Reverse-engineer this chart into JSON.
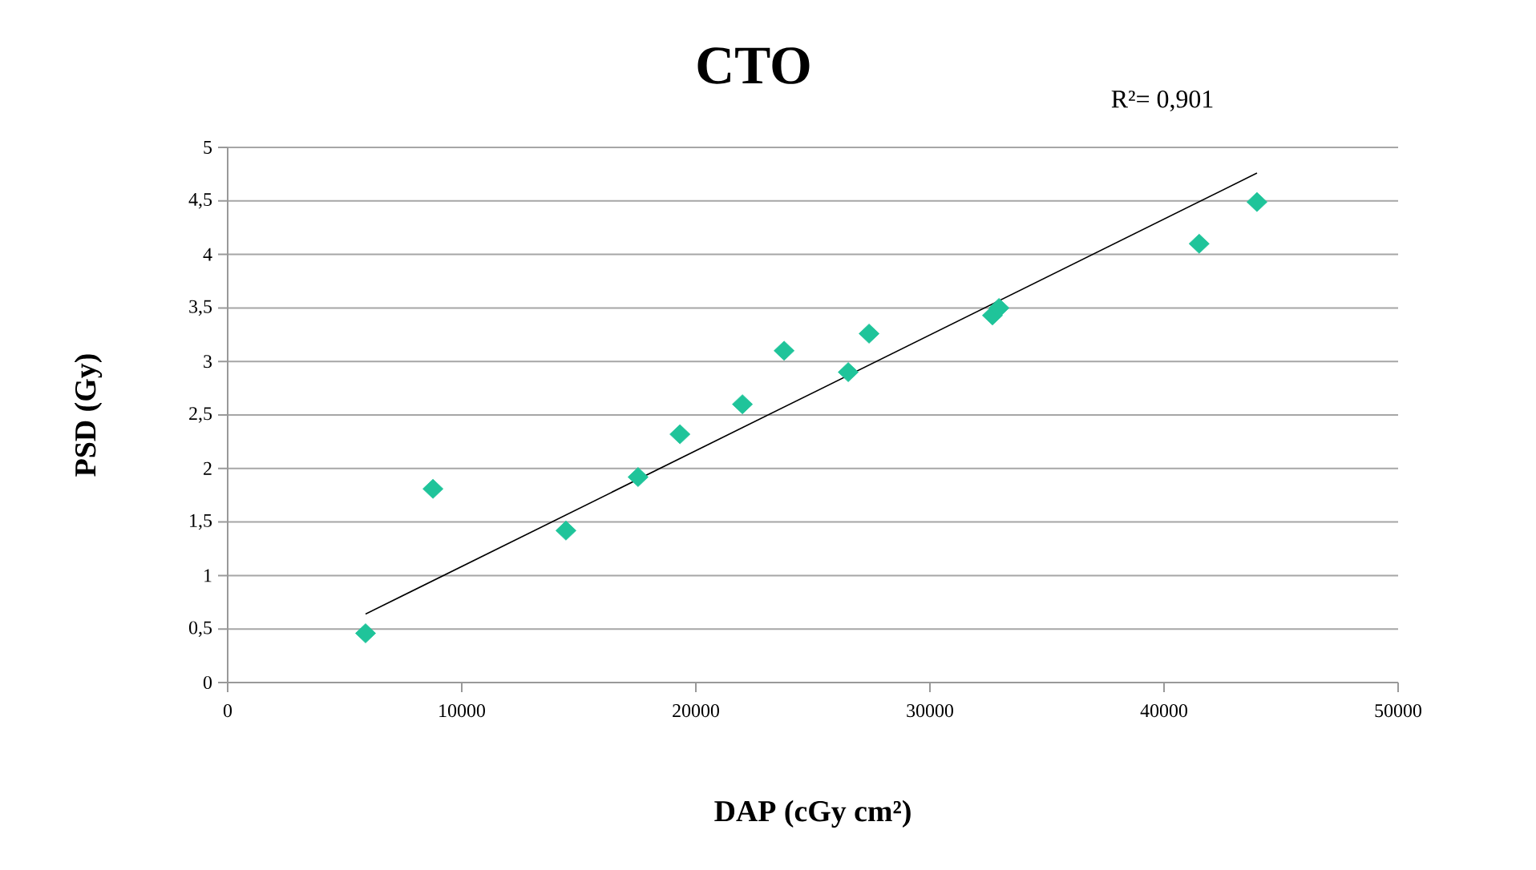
{
  "chart_data": {
    "type": "scatter",
    "title": "CTO",
    "xlabel": "DAP (cGy cm²)",
    "ylabel": "PSD (Gy)",
    "annotations": [
      "R²= 0,901"
    ],
    "series": [
      {
        "color": "#1fc49a",
        "x": [
          5890,
          8770,
          14450,
          17530,
          19320,
          21990,
          23770,
          26510,
          27400,
          32670,
          32950,
          41500,
          43970
        ],
        "values": [
          0.46,
          1.81,
          1.42,
          1.92,
          2.32,
          2.6,
          3.1,
          2.9,
          3.26,
          3.43,
          3.5,
          4.1,
          4.49
        ]
      },
      {
        "type": "line",
        "color": "#000000",
        "marker": "none",
        "x": [
          5890,
          43970
        ],
        "values": [
          0.64,
          4.76
        ]
      }
    ],
    "xlim": [
      0,
      50000
    ],
    "xticks": [
      0,
      10000,
      20000,
      30000,
      40000,
      50000
    ],
    "ylim": [
      0,
      5
    ],
    "yticks": [
      0,
      {
        "value": 0.5,
        "label": "0,5"
      },
      1,
      {
        "value": 1.5,
        "label": "1,5"
      },
      2,
      {
        "value": 2.5,
        "label": "2,5"
      },
      3,
      {
        "value": 3.5,
        "label": "3,5"
      },
      4,
      {
        "value": 4.5,
        "label": "4,5"
      },
      5
    ],
    "grid": "y",
    "marker": "diamond"
  }
}
